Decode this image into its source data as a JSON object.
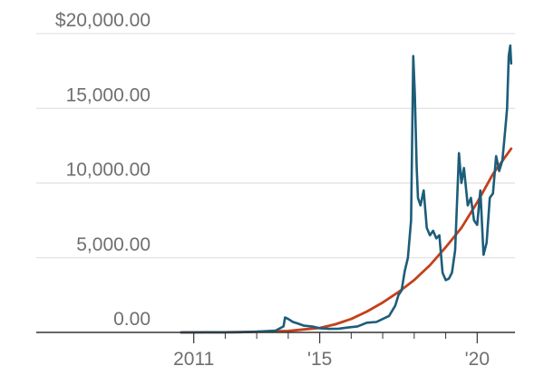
{
  "chart_data": {
    "type": "line",
    "title": "",
    "xlabel": "",
    "ylabel": "",
    "xlim": [
      2006.0,
      2021.2
    ],
    "ylim": [
      0,
      20000
    ],
    "grid": true,
    "legend": "none",
    "y_ticks": [
      {
        "value": 20000,
        "label": "$20,000.00"
      },
      {
        "value": 15000,
        "label": "15,000.00"
      },
      {
        "value": 10000,
        "label": "10,000.00"
      },
      {
        "value": 5000,
        "label": "5,000.00"
      },
      {
        "value": 0,
        "label": "0.00"
      }
    ],
    "x_ticks": [
      {
        "value": 2011,
        "label": "2011"
      },
      {
        "value": 2015,
        "label": "'15"
      },
      {
        "value": 2020,
        "label": "'20"
      }
    ],
    "x_minor_ticks": [
      2012,
      2013,
      2014,
      2016,
      2017,
      2018,
      2019
    ],
    "series": [
      {
        "color": "#1c5d7a",
        "x": [
          2010.6,
          2011.0,
          2011.4,
          2011.8,
          2012.5,
          2013.0,
          2013.6,
          2013.85,
          2013.9,
          2014.0,
          2014.15,
          2014.3,
          2014.5,
          2014.8,
          2015.0,
          2015.3,
          2015.6,
          2015.9,
          2016.2,
          2016.5,
          2016.8,
          2017.0,
          2017.2,
          2017.4,
          2017.5,
          2017.6,
          2017.7,
          2017.8,
          2017.9,
          2017.97,
          2018.02,
          2018.08,
          2018.12,
          2018.2,
          2018.3,
          2018.4,
          2018.5,
          2018.6,
          2018.7,
          2018.8,
          2018.9,
          2019.0,
          2019.1,
          2019.2,
          2019.3,
          2019.42,
          2019.5,
          2019.58,
          2019.7,
          2019.8,
          2019.9,
          2020.0,
          2020.1,
          2020.2,
          2020.3,
          2020.4,
          2020.5,
          2020.6,
          2020.7,
          2020.8,
          2020.9,
          2020.95,
          2021.0,
          2021.05,
          2021.08
        ],
        "y": [
          0,
          0,
          10,
          5,
          10,
          50,
          120,
          400,
          1000,
          900,
          700,
          600,
          450,
          380,
          280,
          240,
          250,
          330,
          400,
          650,
          700,
          900,
          1100,
          1800,
          2500,
          2800,
          4100,
          5000,
          7500,
          18500,
          16000,
          11000,
          9000,
          8500,
          9500,
          7000,
          6500,
          6800,
          6300,
          6500,
          4000,
          3500,
          3600,
          4000,
          5500,
          12000,
          10000,
          11000,
          8500,
          9000,
          7500,
          7200,
          9500,
          5200,
          6000,
          9000,
          9300,
          11800,
          10800,
          11500,
          13800,
          15000,
          18500,
          19200,
          18000
        ]
      },
      {
        "color": "#c5401c",
        "x": [
          2010.6,
          2012.0,
          2013.0,
          2014.0,
          2014.5,
          2015.0,
          2015.5,
          2016.0,
          2016.5,
          2017.0,
          2017.5,
          2018.0,
          2018.5,
          2019.0,
          2019.5,
          2020.0,
          2020.5,
          2021.08
        ],
        "y": [
          0,
          5,
          40,
          100,
          200,
          300,
          550,
          900,
          1400,
          2000,
          2700,
          3500,
          4500,
          5700,
          7000,
          8700,
          10600,
          12300
        ]
      }
    ]
  }
}
